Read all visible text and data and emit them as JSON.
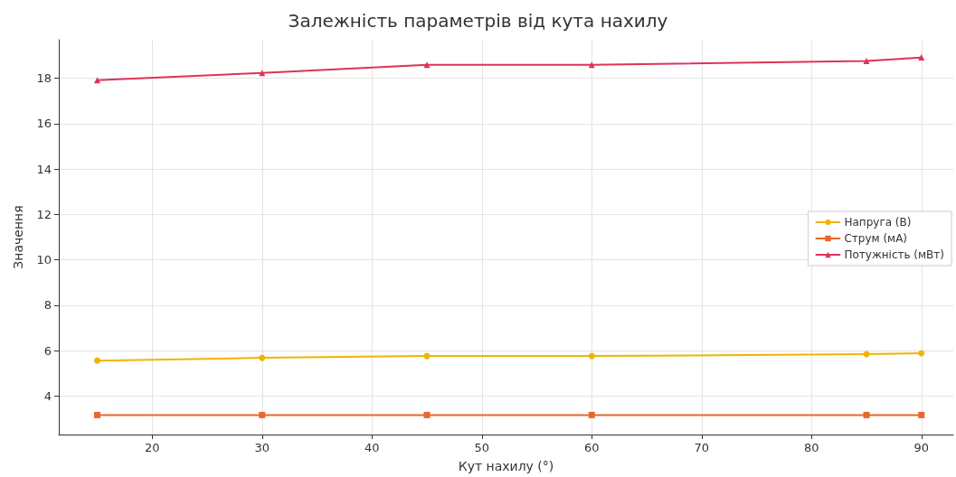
{
  "chart_data": {
    "type": "line",
    "title": "Залежність параметрів від кута нахилу",
    "xlabel": "Кут нахилу (°)",
    "ylabel": "Значення",
    "x": [
      15,
      30,
      45,
      60,
      85,
      90
    ],
    "series": [
      {
        "name": "Напруга (В)",
        "color": "#f0b400",
        "marker": "circle",
        "values": [
          5.56,
          5.68,
          5.76,
          5.76,
          5.84,
          5.88
        ]
      },
      {
        "name": "Струм (мА)",
        "color": "#e8672c",
        "marker": "square",
        "values": [
          3.16,
          3.16,
          3.16,
          3.16,
          3.16,
          3.16
        ]
      },
      {
        "name": "Потужність (мВт)",
        "color": "#e0325a",
        "marker": "triangle",
        "values": [
          17.92,
          18.24,
          18.6,
          18.6,
          18.76,
          18.92
        ]
      }
    ],
    "xlim": [
      11.5,
      92.9
    ],
    "xticks": [
      20,
      30,
      40,
      50,
      60,
      70,
      80,
      90
    ],
    "ylim": [
      2.3,
      19.7
    ],
    "yticks": [
      4,
      6,
      8,
      10,
      12,
      14,
      16,
      18
    ],
    "grid": true,
    "legend": "right"
  }
}
